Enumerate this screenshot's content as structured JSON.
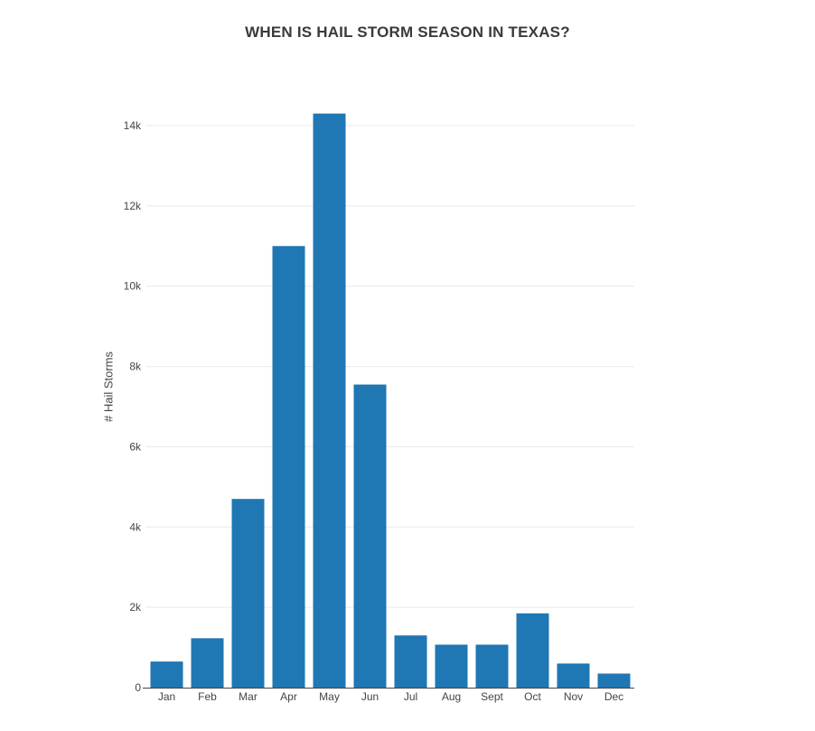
{
  "chart_data": {
    "type": "bar",
    "title": "WHEN IS HAIL STORM SEASON IN TEXAS?",
    "xlabel": "",
    "ylabel": "# Hail Storms",
    "categories": [
      "Jan",
      "Feb",
      "Mar",
      "Apr",
      "May",
      "Jun",
      "Jul",
      "Aug",
      "Sept",
      "Oct",
      "Nov",
      "Dec"
    ],
    "values": [
      650,
      1230,
      4700,
      11000,
      14300,
      7550,
      1300,
      1070,
      1070,
      1850,
      600,
      350
    ],
    "ylim": [
      0,
      15000
    ],
    "yticks": [
      0,
      2000,
      4000,
      6000,
      8000,
      10000,
      12000,
      14000
    ],
    "ytick_labels": [
      "0",
      "2k",
      "4k",
      "6k",
      "8k",
      "10k",
      "12k",
      "14k"
    ],
    "grid": true,
    "bar_color": "#1f77b4",
    "grid_color": "#e9e9e9",
    "axis_color": "#444444"
  }
}
